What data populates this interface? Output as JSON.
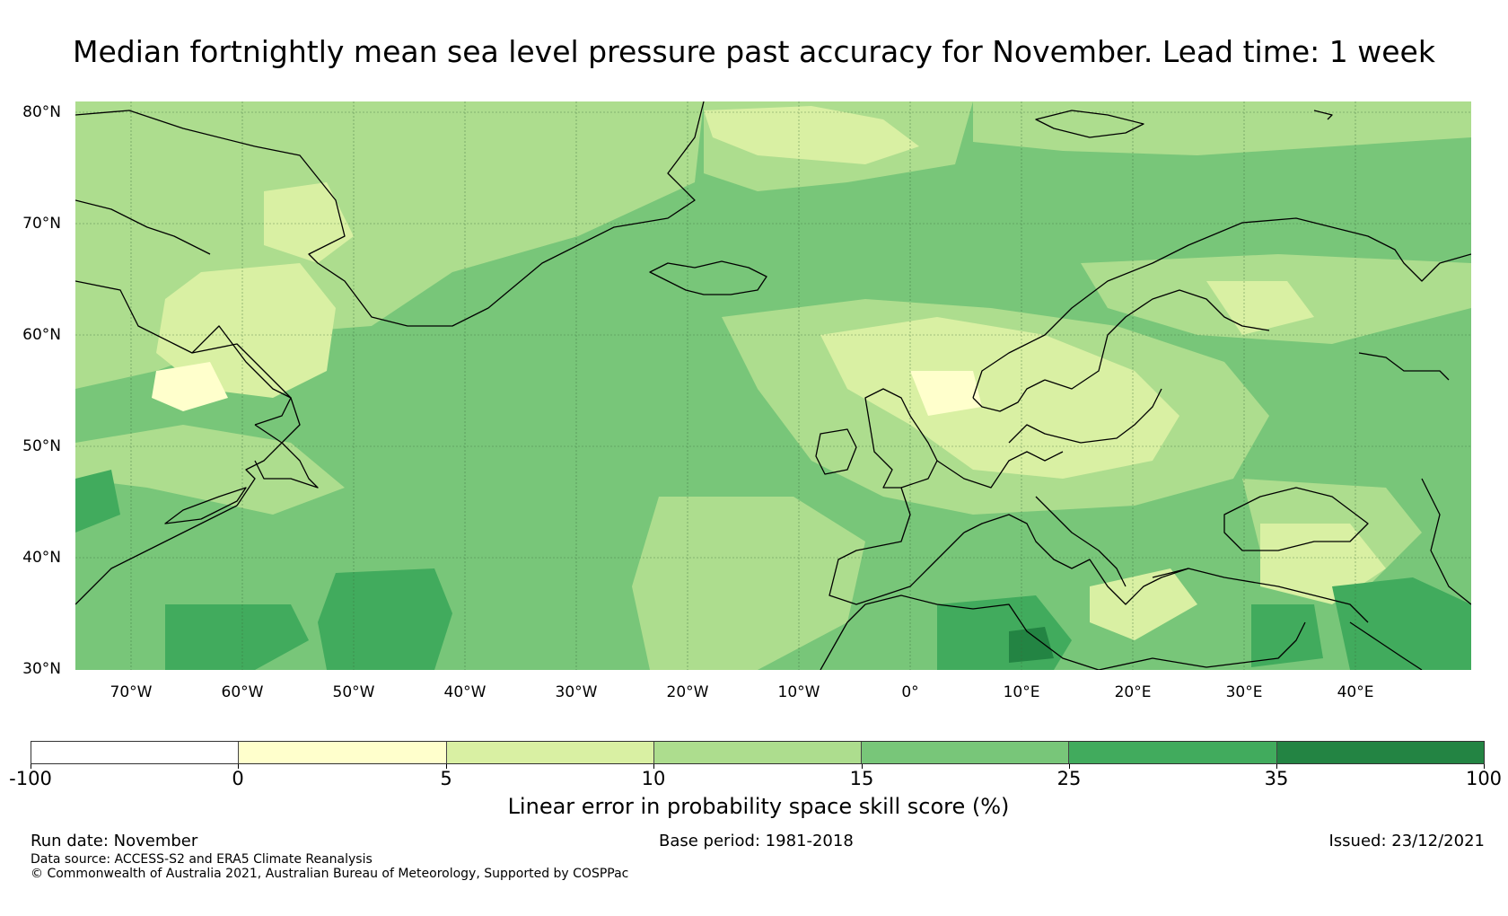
{
  "title": "Median fortnightly mean sea level pressure past accuracy for November. Lead time: 1 week",
  "map": {
    "lat_labels": [
      "80°N",
      "70°N",
      "60°N",
      "50°N",
      "40°N",
      "30°N"
    ],
    "lon_labels": [
      "70°W",
      "60°W",
      "50°W",
      "40°W",
      "30°W",
      "20°W",
      "10°W",
      "0°",
      "10°E",
      "20°E",
      "30°E",
      "40°E"
    ],
    "extent": {
      "lon_min": -75,
      "lon_max": 50,
      "lat_min": 30,
      "lat_max": 81
    }
  },
  "legend": {
    "title": "Linear error in probability space skill score (%)",
    "ticks": [
      "-100",
      "0",
      "5",
      "10",
      "15",
      "25",
      "35",
      "100"
    ],
    "colors": [
      "#ffffff",
      "#ffffcc",
      "#d9f0a3",
      "#addd8e",
      "#78c679",
      "#41ab5d",
      "#238443"
    ]
  },
  "footer": {
    "run_date": "Run date: November",
    "base_period": "Base period: 1981-2018",
    "issued": "Issued: 23/12/2021",
    "data_source": "Data source: ACCESS-S2 and ERA5 Climate Reanalysis",
    "copyright": "© Commonwealth of Australia 2021, Australian Bureau of Meteorology, Supported by COSPPac"
  }
}
